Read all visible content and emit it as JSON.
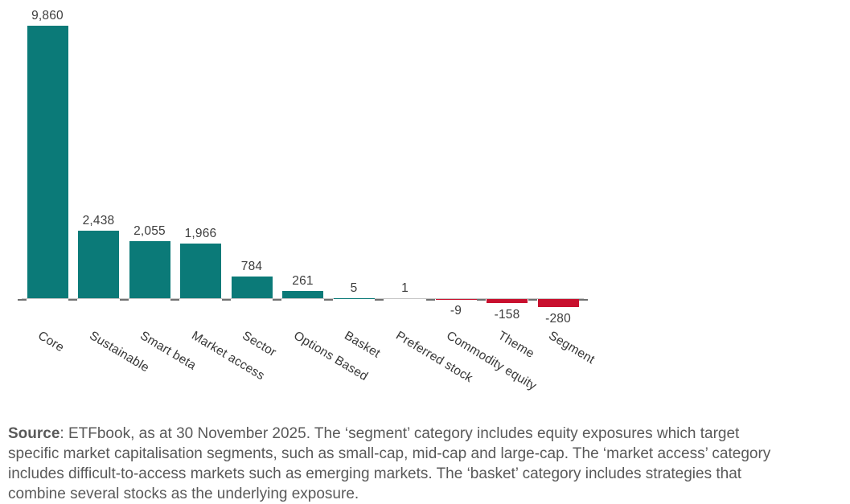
{
  "chart_data": {
    "type": "bar",
    "title": "",
    "xlabel": "",
    "ylabel": "",
    "categories": [
      "Core",
      "Sustainable",
      "Smart beta",
      "Market access",
      "Sector",
      "Options Based",
      "Basket",
      "Preferred stock",
      "Commodity equity",
      "Theme",
      "Segment"
    ],
    "values": [
      9860,
      2438,
      2055,
      1966,
      784,
      261,
      5,
      1,
      -9,
      -158,
      -280
    ],
    "value_labels": [
      "9,860",
      "2,438",
      "2,055",
      "1,966",
      "784",
      "261",
      "5",
      "1",
      "-9",
      "-158",
      "-280"
    ],
    "ylim": [
      -300,
      9860
    ],
    "grid": false,
    "legend": false,
    "positive_color": "#0b7a78",
    "negative_color": "#c8102e",
    "axis_line_color": "#c6c6c6",
    "tick_color": "#6f6f6f",
    "label_color": "#3d3d3d"
  },
  "source_note": {
    "bold_prefix": "Source",
    "lines": [
      ": ETFbook, as at 30 November 2025. The ‘segment’ category includes equity exposures which target",
      "specific market capitalisation segments, such as small-cap, mid-cap and large-cap. The ‘market access’ category",
      "includes difficult-to-access markets such as emerging markets. The ‘basket’ category includes strategies that",
      "combine several stocks as the underlying exposure."
    ]
  }
}
